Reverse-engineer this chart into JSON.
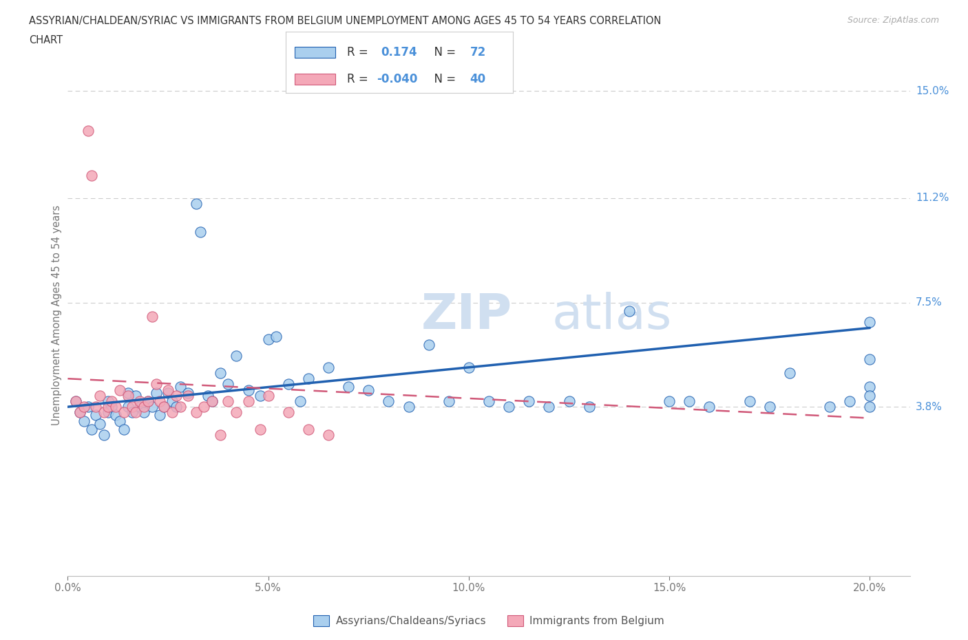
{
  "title_line1": "ASSYRIAN/CHALDEAN/SYRIAC VS IMMIGRANTS FROM BELGIUM UNEMPLOYMENT AMONG AGES 45 TO 54 YEARS CORRELATION",
  "title_line2": "CHART",
  "source": "Source: ZipAtlas.com",
  "ylabel": "Unemployment Among Ages 45 to 54 years",
  "xlim": [
    0.0,
    0.21
  ],
  "ylim": [
    -0.022,
    0.163
  ],
  "xticks": [
    0.0,
    0.05,
    0.1,
    0.15,
    0.2
  ],
  "xticklabels": [
    "0.0%",
    "5.0%",
    "10.0%",
    "15.0%",
    "20.0%"
  ],
  "ytick_positions": [
    0.038,
    0.075,
    0.112,
    0.15
  ],
  "ytick_labels": [
    "3.8%",
    "7.5%",
    "11.2%",
    "15.0%"
  ],
  "grid_color": "#cccccc",
  "background_color": "#ffffff",
  "series1_color": "#aacfee",
  "series2_color": "#f4a8b8",
  "series1_label": "Assyrians/Chaldeans/Syriacs",
  "series2_label": "Immigrants from Belgium",
  "line1_color": "#2060b0",
  "line2_color": "#d05878",
  "line1_x0": 0.0,
  "line1_y0": 0.038,
  "line1_x1": 0.2,
  "line1_y1": 0.066,
  "line2_x0": 0.0,
  "line2_y0": 0.048,
  "line2_x1": 0.2,
  "line2_y1": 0.034,
  "watermark_color": "#d0dff0",
  "s1_x": [
    0.002,
    0.003,
    0.004,
    0.005,
    0.006,
    0.007,
    0.008,
    0.009,
    0.01,
    0.01,
    0.011,
    0.012,
    0.013,
    0.014,
    0.015,
    0.015,
    0.016,
    0.017,
    0.018,
    0.019,
    0.02,
    0.021,
    0.022,
    0.023,
    0.024,
    0.025,
    0.026,
    0.027,
    0.028,
    0.03,
    0.032,
    0.033,
    0.035,
    0.036,
    0.038,
    0.04,
    0.042,
    0.045,
    0.048,
    0.05,
    0.052,
    0.055,
    0.058,
    0.06,
    0.065,
    0.07,
    0.075,
    0.08,
    0.085,
    0.09,
    0.095,
    0.1,
    0.105,
    0.11,
    0.115,
    0.12,
    0.125,
    0.13,
    0.14,
    0.15,
    0.155,
    0.16,
    0.17,
    0.175,
    0.18,
    0.19,
    0.195,
    0.2,
    0.2,
    0.2,
    0.2,
    0.2
  ],
  "s1_y": [
    0.04,
    0.036,
    0.033,
    0.038,
    0.03,
    0.035,
    0.032,
    0.028,
    0.04,
    0.036,
    0.038,
    0.035,
    0.033,
    0.03,
    0.038,
    0.043,
    0.036,
    0.042,
    0.038,
    0.036,
    0.04,
    0.038,
    0.043,
    0.035,
    0.038,
    0.043,
    0.04,
    0.038,
    0.045,
    0.043,
    0.11,
    0.1,
    0.042,
    0.04,
    0.05,
    0.046,
    0.056,
    0.044,
    0.042,
    0.062,
    0.063,
    0.046,
    0.04,
    0.048,
    0.052,
    0.045,
    0.044,
    0.04,
    0.038,
    0.06,
    0.04,
    0.052,
    0.04,
    0.038,
    0.04,
    0.038,
    0.04,
    0.038,
    0.072,
    0.04,
    0.04,
    0.038,
    0.04,
    0.038,
    0.05,
    0.038,
    0.04,
    0.068,
    0.055,
    0.045,
    0.038,
    0.042
  ],
  "s2_x": [
    0.002,
    0.003,
    0.004,
    0.005,
    0.006,
    0.007,
    0.008,
    0.009,
    0.01,
    0.011,
    0.012,
    0.013,
    0.014,
    0.015,
    0.016,
    0.017,
    0.018,
    0.019,
    0.02,
    0.021,
    0.022,
    0.023,
    0.024,
    0.025,
    0.026,
    0.027,
    0.028,
    0.03,
    0.032,
    0.034,
    0.036,
    0.038,
    0.04,
    0.042,
    0.045,
    0.048,
    0.05,
    0.055,
    0.06,
    0.065
  ],
  "s2_y": [
    0.04,
    0.036,
    0.038,
    0.136,
    0.12,
    0.038,
    0.042,
    0.036,
    0.038,
    0.04,
    0.038,
    0.044,
    0.036,
    0.042,
    0.038,
    0.036,
    0.04,
    0.038,
    0.04,
    0.07,
    0.046,
    0.04,
    0.038,
    0.044,
    0.036,
    0.042,
    0.038,
    0.042,
    0.036,
    0.038,
    0.04,
    0.028,
    0.04,
    0.036,
    0.04,
    0.03,
    0.042,
    0.036,
    0.03,
    0.028
  ]
}
